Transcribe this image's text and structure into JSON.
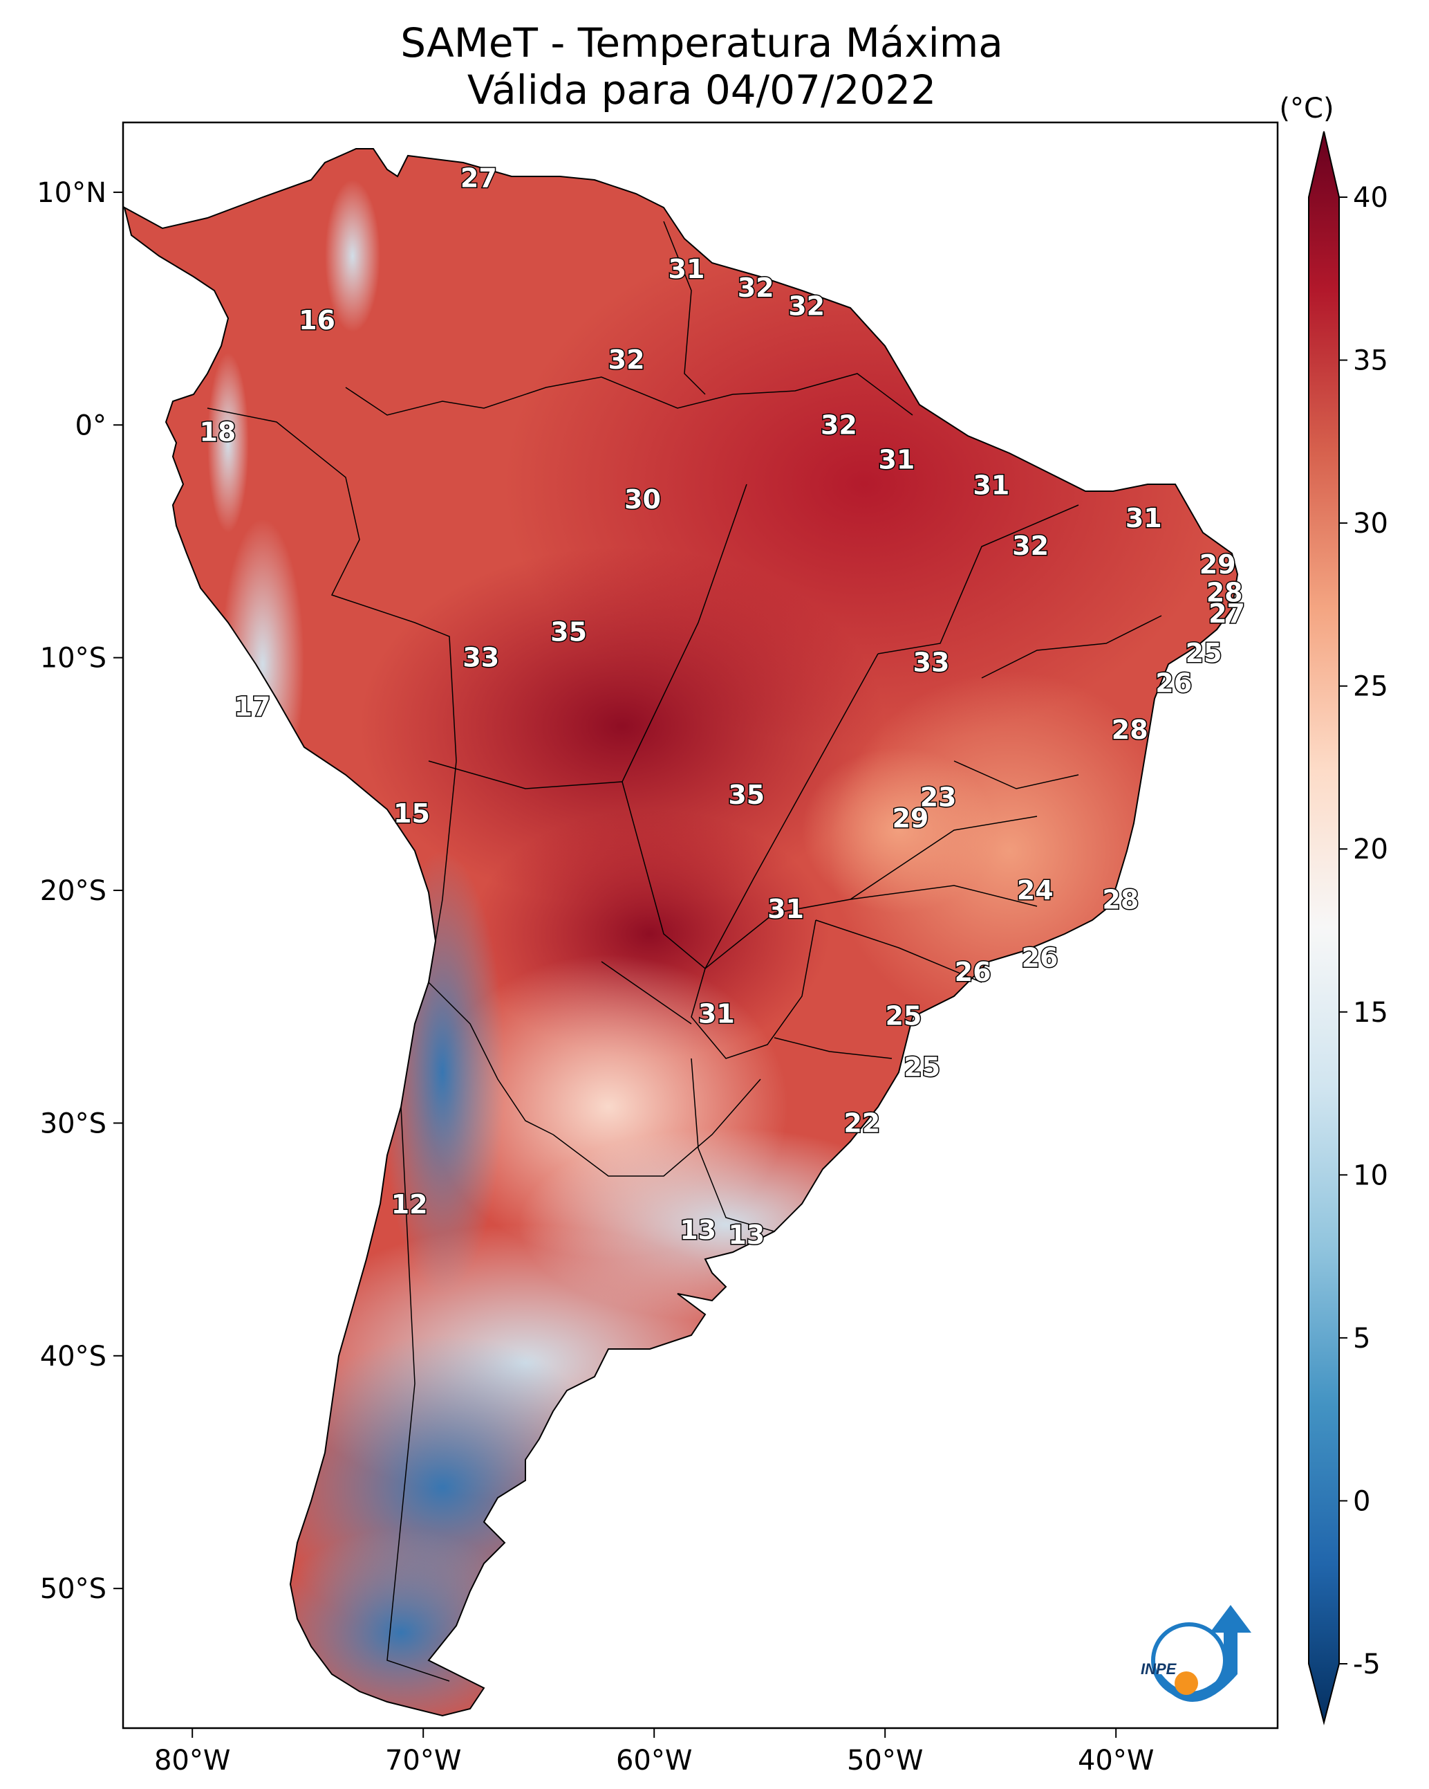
{
  "title": "SAMeT - Temperatura Máxima",
  "subtitle": "Válida para 04/07/2022",
  "logo_text": "INPE",
  "map": {
    "lon_range": [
      -83,
      -33
    ],
    "lat_range": [
      -56,
      13
    ],
    "x_ticks": [
      {
        "value": -80,
        "label": "80°W"
      },
      {
        "value": -70,
        "label": "70°W"
      },
      {
        "value": -60,
        "label": "60°W"
      },
      {
        "value": -50,
        "label": "50°W"
      },
      {
        "value": -40,
        "label": "40°W"
      }
    ],
    "y_ticks": [
      {
        "value": 10,
        "label": "10°N"
      },
      {
        "value": 0,
        "label": "0°"
      },
      {
        "value": -10,
        "label": "10°S"
      },
      {
        "value": -20,
        "label": "20°S"
      },
      {
        "value": -30,
        "label": "30°S"
      },
      {
        "value": -40,
        "label": "40°S"
      },
      {
        "value": -50,
        "label": "50°S"
      }
    ],
    "labels": [
      {
        "text": "27",
        "lon": -67.6,
        "lat": 10.6
      },
      {
        "text": "16",
        "lon": -74.6,
        "lat": 4.5
      },
      {
        "text": "18",
        "lon": -78.9,
        "lat": -0.3
      },
      {
        "text": "31",
        "lon": -58.6,
        "lat": 6.7
      },
      {
        "text": "32",
        "lon": -55.6,
        "lat": 5.9
      },
      {
        "text": "32",
        "lon": -53.4,
        "lat": 5.1
      },
      {
        "text": "32",
        "lon": -61.2,
        "lat": 2.8
      },
      {
        "text": "32",
        "lon": -52.0,
        "lat": 0.0
      },
      {
        "text": "31",
        "lon": -49.5,
        "lat": -1.5
      },
      {
        "text": "31",
        "lon": -45.4,
        "lat": -2.6
      },
      {
        "text": "31",
        "lon": -38.8,
        "lat": -4.0
      },
      {
        "text": "30",
        "lon": -60.5,
        "lat": -3.2
      },
      {
        "text": "32",
        "lon": -43.7,
        "lat": -5.2
      },
      {
        "text": "29",
        "lon": -35.6,
        "lat": -6.0
      },
      {
        "text": "28",
        "lon": -35.3,
        "lat": -7.2
      },
      {
        "text": "27",
        "lon": -35.2,
        "lat": -8.1
      },
      {
        "text": "25",
        "lon": -36.2,
        "lat": -9.8
      },
      {
        "text": "26",
        "lon": -37.5,
        "lat": -11.1
      },
      {
        "text": "28",
        "lon": -39.4,
        "lat": -13.1
      },
      {
        "text": "35",
        "lon": -63.7,
        "lat": -8.9
      },
      {
        "text": "33",
        "lon": -67.5,
        "lat": -10.0
      },
      {
        "text": "33",
        "lon": -48.0,
        "lat": -10.2
      },
      {
        "text": "17",
        "lon": -77.4,
        "lat": -12.1
      },
      {
        "text": "15",
        "lon": -70.5,
        "lat": -16.7
      },
      {
        "text": "35",
        "lon": -56.0,
        "lat": -15.9
      },
      {
        "text": "23",
        "lon": -47.7,
        "lat": -16.0
      },
      {
        "text": "29",
        "lon": -48.9,
        "lat": -16.9
      },
      {
        "text": "24",
        "lon": -43.5,
        "lat": -20.0
      },
      {
        "text": "28",
        "lon": -39.8,
        "lat": -20.4
      },
      {
        "text": "31",
        "lon": -54.3,
        "lat": -20.8
      },
      {
        "text": "26",
        "lon": -46.2,
        "lat": -23.5
      },
      {
        "text": "26",
        "lon": -43.3,
        "lat": -22.9
      },
      {
        "text": "31",
        "lon": -57.3,
        "lat": -25.3
      },
      {
        "text": "25",
        "lon": -49.2,
        "lat": -25.4
      },
      {
        "text": "25",
        "lon": -48.4,
        "lat": -27.6
      },
      {
        "text": "22",
        "lon": -51.0,
        "lat": -30.0
      },
      {
        "text": "12",
        "lon": -70.6,
        "lat": -33.5
      },
      {
        "text": "13",
        "lon": -58.1,
        "lat": -34.6
      },
      {
        "text": "13",
        "lon": -56.0,
        "lat": -34.8
      }
    ]
  },
  "colorbar": {
    "unit": "(°C)",
    "range": [
      -5,
      40
    ],
    "ticks": [
      {
        "value": 40,
        "label": "40"
      },
      {
        "value": 35,
        "label": "35"
      },
      {
        "value": 30,
        "label": "30"
      },
      {
        "value": 25,
        "label": "25"
      },
      {
        "value": 20,
        "label": "20"
      },
      {
        "value": 15,
        "label": "15"
      },
      {
        "value": 10,
        "label": "10"
      },
      {
        "value": 5,
        "label": "5"
      },
      {
        "value": 0,
        "label": "0"
      },
      {
        "value": -5,
        "label": "-5"
      }
    ],
    "colors": [
      "#053061",
      "#2166ac",
      "#4393c3",
      "#92c5de",
      "#d1e5f0",
      "#f7f7f7",
      "#fddbc7",
      "#f4a582",
      "#d6604d",
      "#b2182b",
      "#67001f"
    ]
  }
}
